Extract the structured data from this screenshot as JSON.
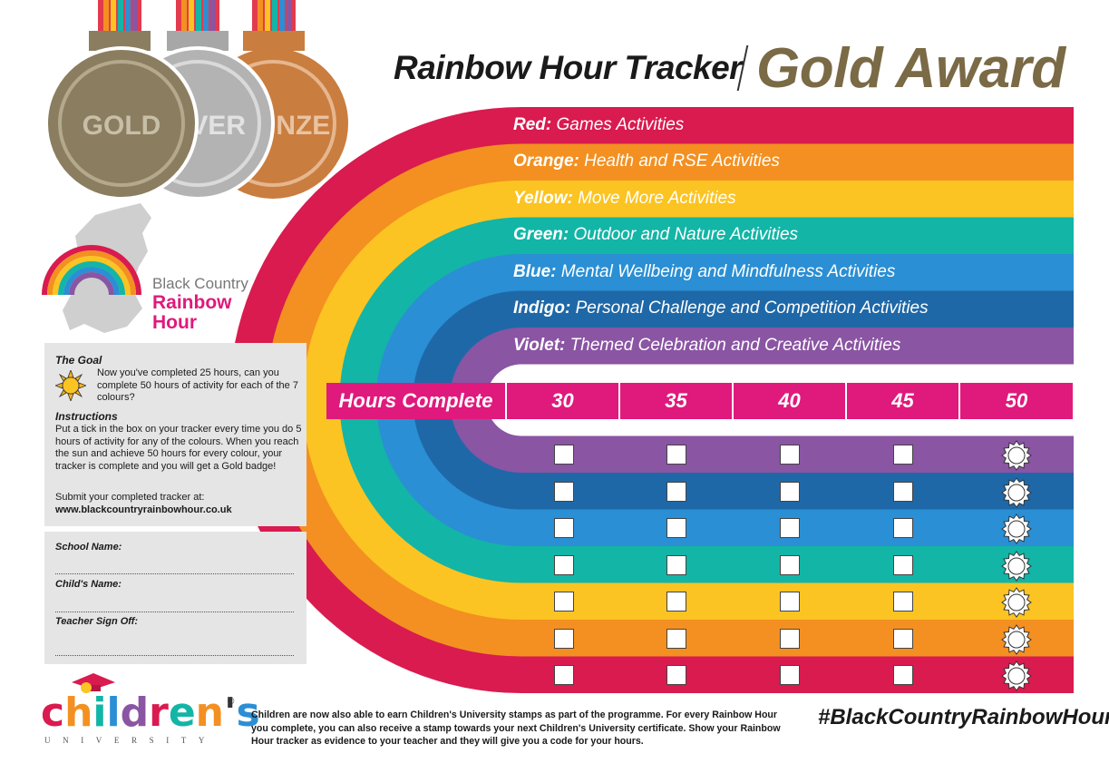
{
  "title": {
    "main": "Rainbow Hour Tracker",
    "award": "Gold Award"
  },
  "medals": [
    {
      "label": "GOLD",
      "color": "#8b7d5f"
    },
    {
      "label": "SILVER",
      "color": "#b3b3b3"
    },
    {
      "label": "BRONZE",
      "color": "#c97d3f"
    }
  ],
  "logo": {
    "line1": "Black Country",
    "line2": "Rainbow",
    "line3": "Hour"
  },
  "bands": [
    {
      "color_name": "Red:",
      "activity": "Games Activities",
      "hex": "#d91b4f"
    },
    {
      "color_name": "Orange:",
      "activity": "Health and RSE Activities",
      "hex": "#f39021"
    },
    {
      "color_name": "Yellow:",
      "activity": "Move More Activities",
      "hex": "#fcc422"
    },
    {
      "color_name": "Green:",
      "activity": "Outdoor and Nature Activities",
      "hex": "#13b5a6"
    },
    {
      "color_name": "Blue:",
      "activity": "Mental Wellbeing and Mindfulness Activities",
      "hex": "#2a8fd4"
    },
    {
      "color_name": "Indigo:",
      "activity": "Personal Challenge and Competition Activities",
      "hex": "#1f68a8"
    },
    {
      "color_name": "Violet:",
      "activity": "Themed Celebration and Creative Activities",
      "hex": "#8a55a3"
    }
  ],
  "hours": {
    "label": "Hours Complete",
    "columns": [
      "30",
      "35",
      "40",
      "45",
      "50"
    ],
    "header_color": "#e0197c"
  },
  "goal_panel": {
    "goal_title": "The Goal",
    "goal_text": "Now you've completed 25 hours, can you complete 50 hours of activity for each of the 7 colours?",
    "instructions_title": "Instructions",
    "instructions_text": "Put a tick in the box on your tracker every time you do 5 hours of activity for any of the colours. When you reach the sun and achieve 50 hours for every colour, your tracker is complete and you will get a Gold badge!",
    "submit_text": "Submit your completed tracker at:",
    "url": "www.blackcountryrainbowhour.co.uk"
  },
  "names_panel": {
    "school": "School Name:",
    "child": "Child's Name:",
    "teacher": "Teacher Sign Off:"
  },
  "footer": {
    "cu_letters": [
      "c",
      "h",
      "i",
      "l",
      "d",
      "r",
      "e",
      "n",
      "'",
      "s"
    ],
    "cu_sub": "UNIVERSITY",
    "reg": "®",
    "text": "Children are now also able to earn Children's University stamps as part of the programme. For every Rainbow Hour you complete, you can also receive a stamp towards your next Children's University certificate. Show your Rainbow Hour tracker as evidence to your teacher and they will give you a code for your hours.",
    "hashtag": "#BlackCountryRainbowHour"
  }
}
